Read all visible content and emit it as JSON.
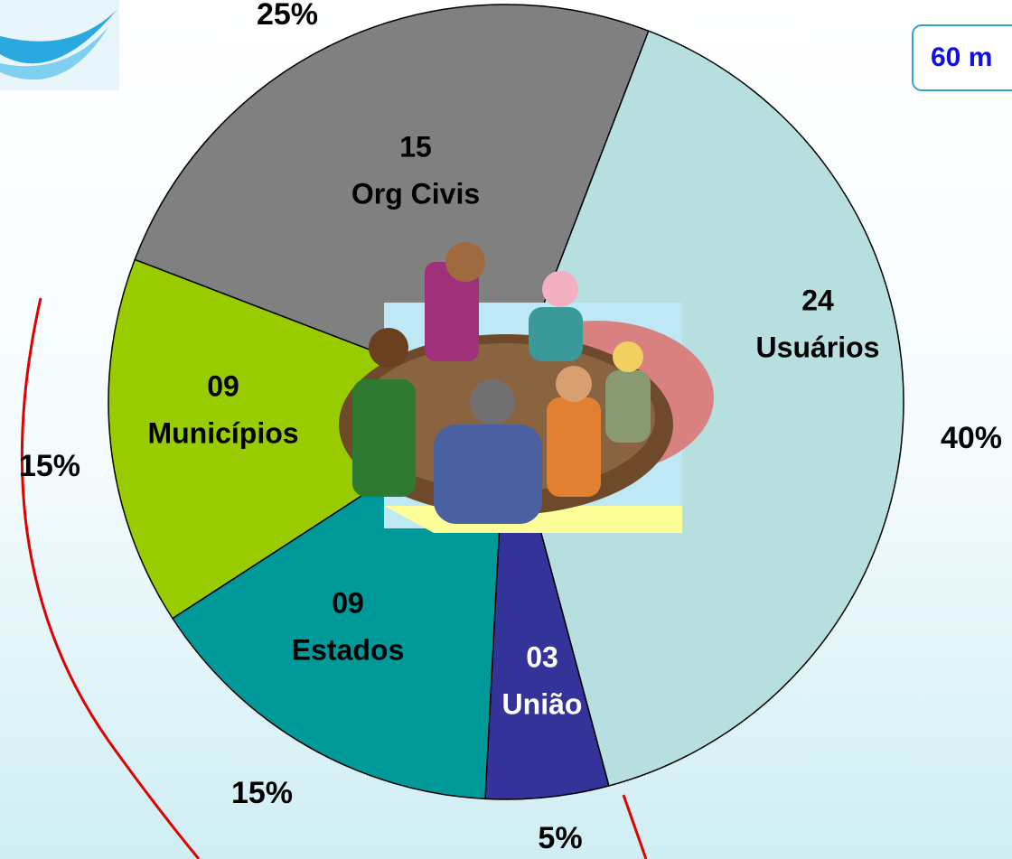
{
  "chart_data": {
    "type": "pie",
    "categories": [
      "Usuários",
      "União",
      "Estados",
      "Municípios",
      "Org Civis"
    ],
    "counts": [
      "24",
      "03",
      "09",
      "09",
      "15"
    ],
    "values": [
      40,
      5,
      15,
      15,
      25
    ],
    "value_labels": [
      "40%",
      "5%",
      "15%",
      "15%",
      "25%"
    ],
    "colors": [
      "#b8dfe0",
      "#333399",
      "#009999",
      "#99cc00",
      "#808080"
    ],
    "start_angle": 21,
    "annotation": "60 m"
  }
}
